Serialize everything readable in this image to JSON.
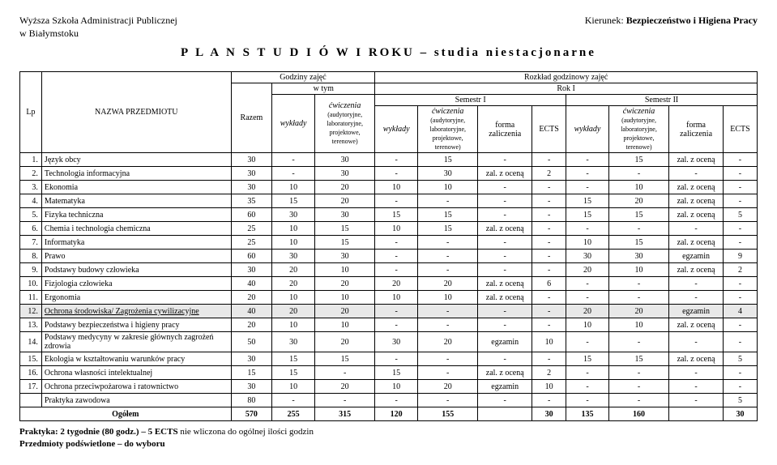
{
  "header": {
    "institution_line1": "Wyższa Szkoła Administracji Publicznej",
    "institution_line2": "w Białymstoku",
    "direction_label": "Kierunek:",
    "direction_value": "Bezpieczeństwo i Higiena Pracy"
  },
  "title": "P L A N   S T U D I Ó W   I ROKU – studia niestacjonarne",
  "columns": {
    "lp": "Lp",
    "subject": "NAZWA PRZEDMIOTU",
    "hours": "Godziny zajęć",
    "in_that": "w tym",
    "schedule": "Rozkład godzinowy zajęć",
    "year": "Rok I",
    "total": "Razem",
    "lectures": "wykłady",
    "exercises": "ćwiczenia",
    "exercises_detail": "(audytoryjne, laboratoryjne, projektowe, terenowe)",
    "sem1": "Semestr I",
    "sem2": "Semestr II",
    "form": "forma zaliczenia",
    "ects": "ECTS"
  },
  "rows": [
    {
      "n": "1.",
      "name": "Język obcy",
      "hl": false,
      "r": [
        "30",
        "-",
        "30",
        "-",
        "15",
        "-",
        "-",
        "-",
        "15",
        "zal. z oceną",
        "-"
      ]
    },
    {
      "n": "2.",
      "name": "Technologia informacyjna",
      "hl": false,
      "r": [
        "30",
        "-",
        "30",
        "-",
        "30",
        "zal. z oceną",
        "2",
        "-",
        "-",
        "-",
        "-"
      ]
    },
    {
      "n": "3.",
      "name": "Ekonomia",
      "hl": false,
      "r": [
        "30",
        "10",
        "20",
        "10",
        "10",
        "-",
        "-",
        "-",
        "10",
        "zal. z oceną",
        "-"
      ]
    },
    {
      "n": "4.",
      "name": "Matematyka",
      "hl": false,
      "r": [
        "35",
        "15",
        "20",
        "-",
        "-",
        "-",
        "-",
        "15",
        "20",
        "zal. z oceną",
        "-"
      ]
    },
    {
      "n": "5.",
      "name": "Fizyka techniczna",
      "hl": false,
      "r": [
        "60",
        "30",
        "30",
        "15",
        "15",
        "-",
        "-",
        "15",
        "15",
        "zal. z oceną",
        "5"
      ]
    },
    {
      "n": "6.",
      "name": "Chemia i technologia chemiczna",
      "hl": false,
      "r": [
        "25",
        "10",
        "15",
        "10",
        "15",
        "zal. z oceną",
        "-",
        "-",
        "-",
        "-",
        "-"
      ]
    },
    {
      "n": "7.",
      "name": "Informatyka",
      "hl": false,
      "r": [
        "25",
        "10",
        "15",
        "-",
        "-",
        "-",
        "-",
        "10",
        "15",
        "zal. z oceną",
        "-"
      ]
    },
    {
      "n": "8.",
      "name": "Prawo",
      "hl": false,
      "r": [
        "60",
        "30",
        "30",
        "-",
        "-",
        "-",
        "-",
        "30",
        "30",
        "egzamin",
        "9"
      ]
    },
    {
      "n": "9.",
      "name": "Podstawy budowy człowieka",
      "hl": false,
      "r": [
        "30",
        "20",
        "10",
        "-",
        "-",
        "-",
        "-",
        "20",
        "10",
        "zal. z oceną",
        "2"
      ]
    },
    {
      "n": "10.",
      "name": "Fizjologia człowieka",
      "hl": false,
      "r": [
        "40",
        "20",
        "20",
        "20",
        "20",
        "zal. z oceną",
        "6",
        "-",
        "-",
        "-",
        "-"
      ]
    },
    {
      "n": "11.",
      "name": "Ergonomia",
      "hl": false,
      "r": [
        "20",
        "10",
        "10",
        "10",
        "10",
        "zal. z oceną",
        "-",
        "-",
        "-",
        "-",
        "-"
      ]
    },
    {
      "n": "12.",
      "name": "Ochrona środowiska/ Zagrożenia cywilizacyjne",
      "hl": true,
      "r": [
        "40",
        "20",
        "20",
        "-",
        "-",
        "-",
        "-",
        "20",
        "20",
        "egzamin",
        "4"
      ]
    },
    {
      "n": "13.",
      "name": "Podstawy bezpieczeństwa i higieny pracy",
      "hl": false,
      "r": [
        "20",
        "10",
        "10",
        "-",
        "-",
        "-",
        "-",
        "10",
        "10",
        "zal. z oceną",
        "-"
      ]
    },
    {
      "n": "14.",
      "name": "Podstawy medycyny w zakresie głównych zagrożeń zdrowia",
      "hl": false,
      "r": [
        "50",
        "30",
        "20",
        "30",
        "20",
        "egzamin",
        "10",
        "-",
        "-",
        "-",
        "-"
      ]
    },
    {
      "n": "15.",
      "name": "Ekologia w kształtowaniu warunków pracy",
      "hl": false,
      "r": [
        "30",
        "15",
        "15",
        "-",
        "-",
        "-",
        "-",
        "15",
        "15",
        "zal. z oceną",
        "5"
      ]
    },
    {
      "n": "16.",
      "name": "Ochrona własności intelektualnej",
      "hl": false,
      "r": [
        "15",
        "15",
        "-",
        "15",
        "-",
        "zal. z oceną",
        "2",
        "-",
        "-",
        "-",
        "-"
      ]
    },
    {
      "n": "17.",
      "name": "Ochrona przeciwpożarowa i ratownictwo",
      "hl": false,
      "r": [
        "30",
        "10",
        "20",
        "10",
        "20",
        "egzamin",
        "10",
        "-",
        "-",
        "-",
        "-"
      ]
    },
    {
      "n": "",
      "name": "Praktyka zawodowa",
      "hl": false,
      "r": [
        "80",
        "-",
        "-",
        "-",
        "-",
        "-",
        "-",
        "-",
        "-",
        "-",
        "5"
      ]
    }
  ],
  "sum": {
    "label": "Ogółem",
    "r": [
      "570",
      "255",
      "315",
      "120",
      "155",
      "",
      "30",
      "135",
      "160",
      "",
      "30"
    ]
  },
  "footer": {
    "line1a": "Praktyka: 2 tygodnie (80 godz.) – 5 ECTS",
    "line1b": " nie wliczona do ogólnej ilości godzin",
    "line2": "Przedmioty podświetlone – do wyboru"
  }
}
